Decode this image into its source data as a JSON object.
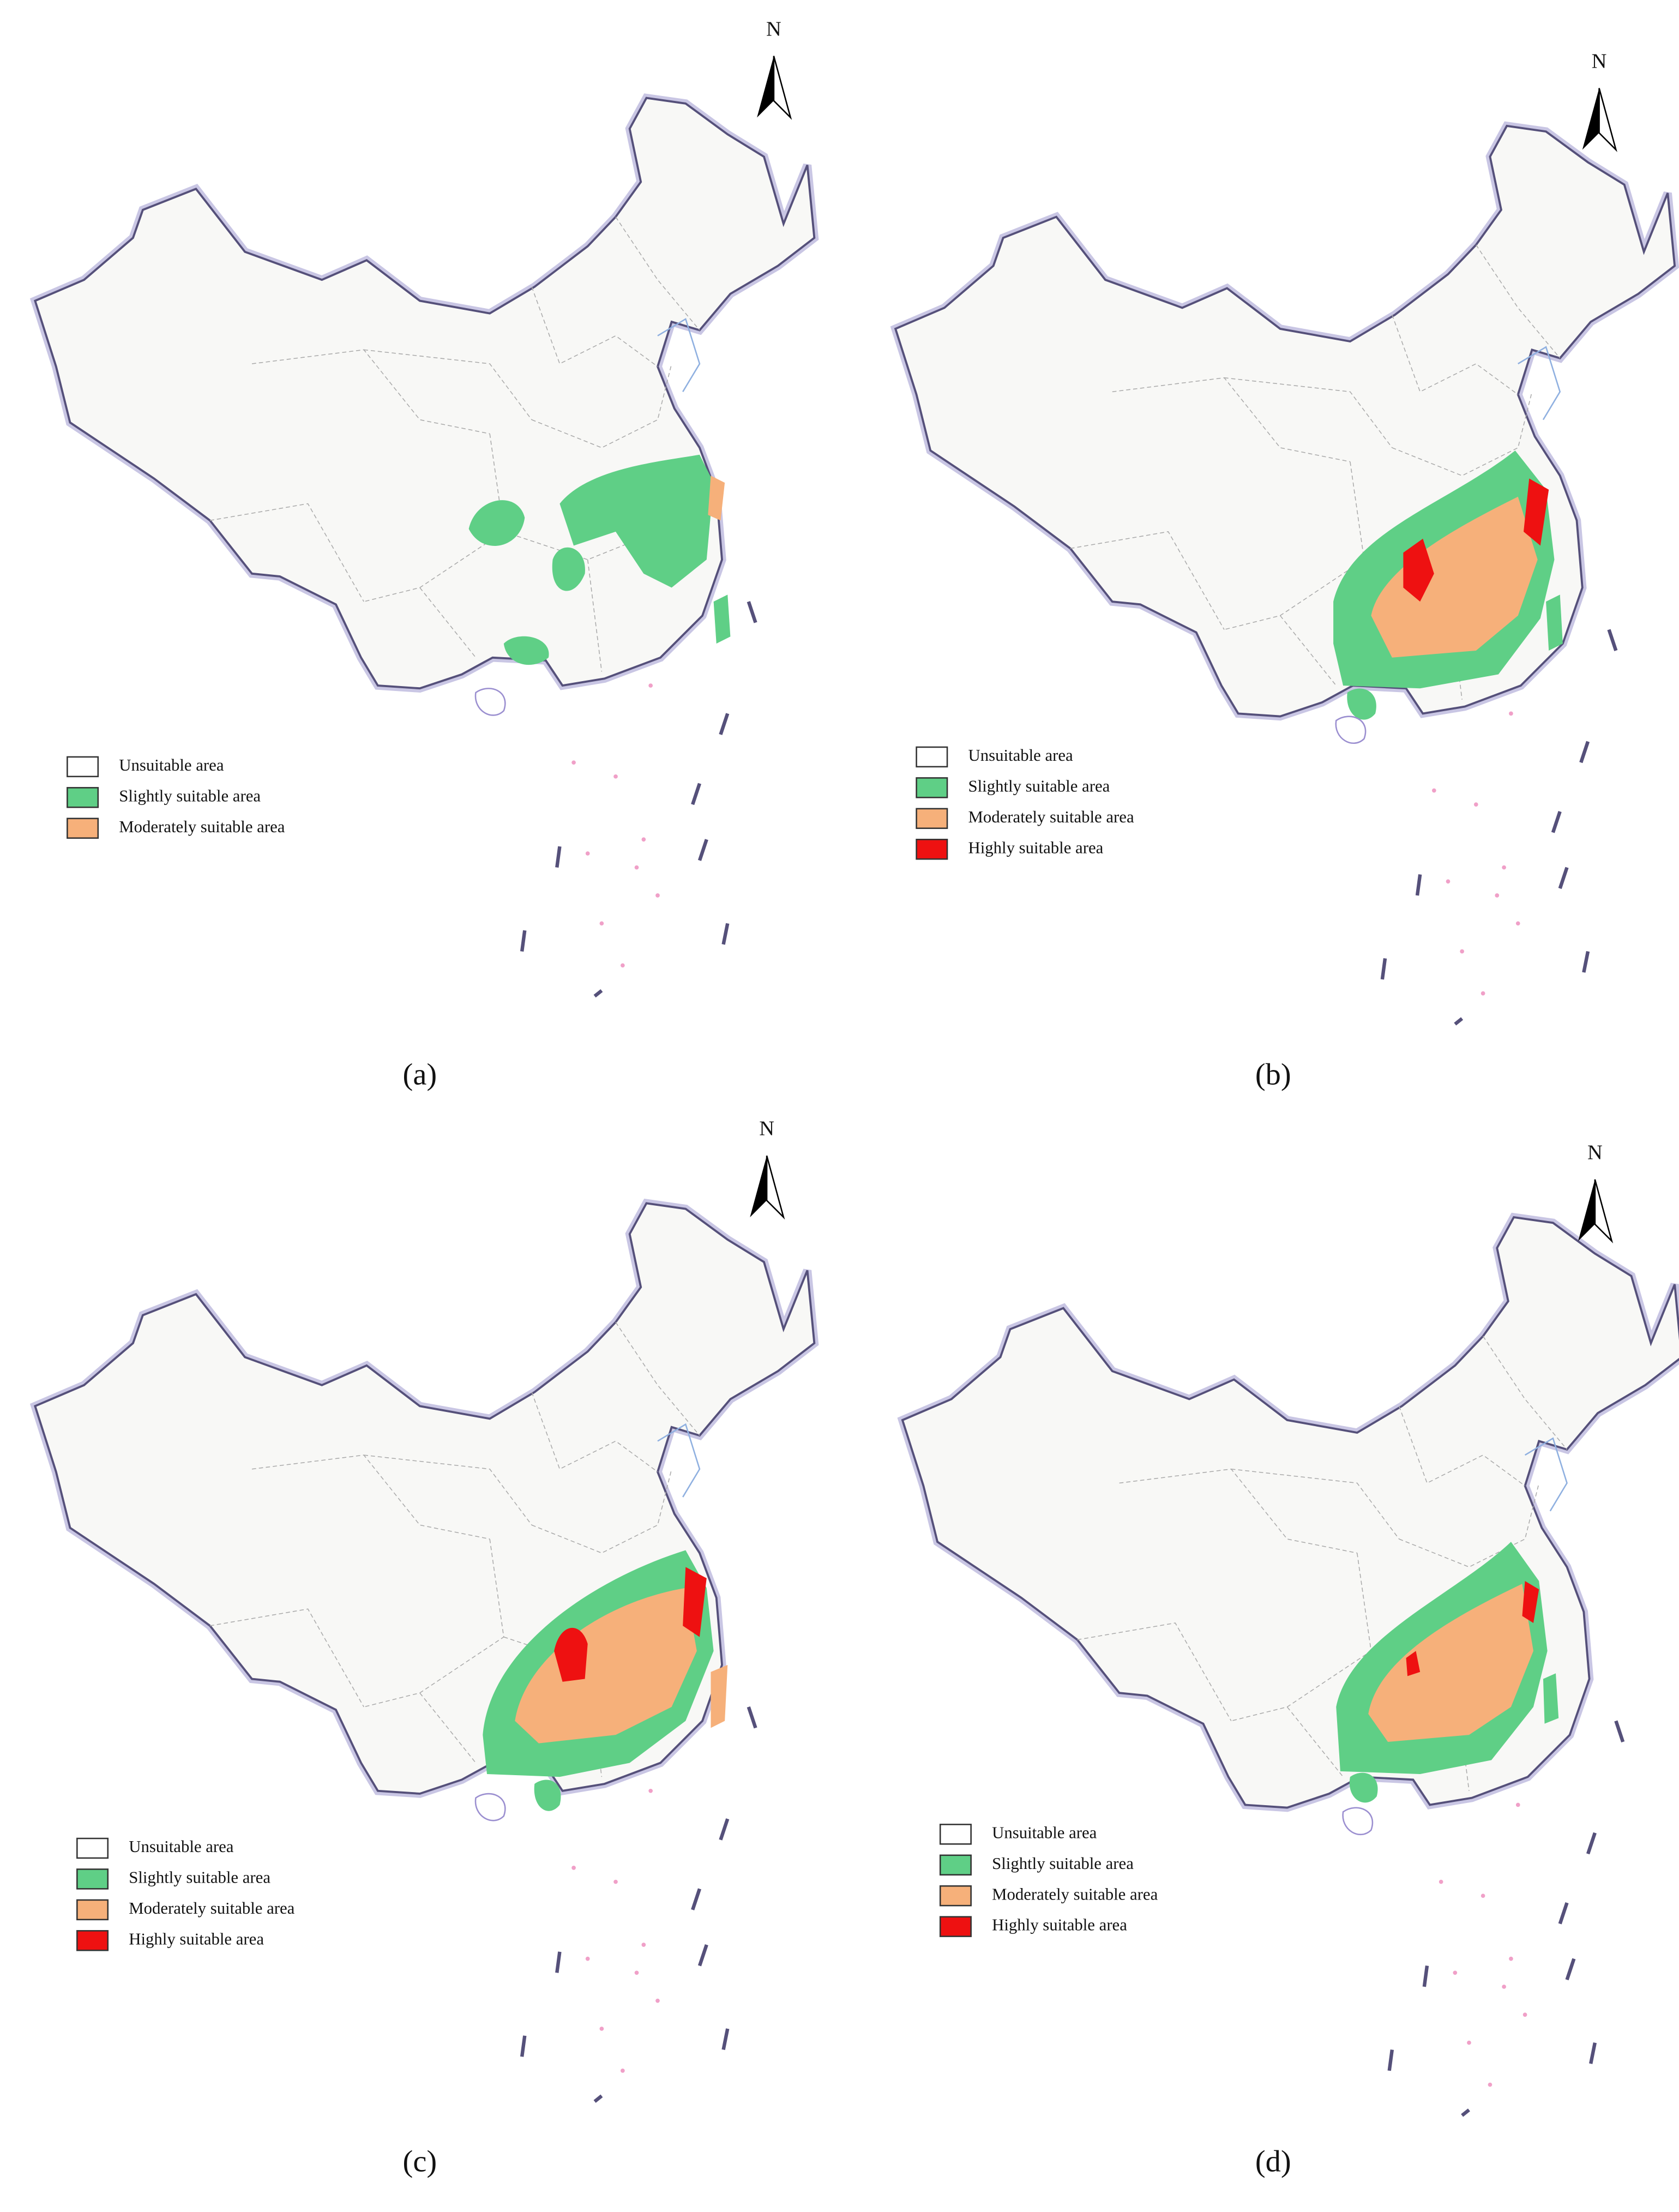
{
  "panels": [
    {
      "label": "(a)",
      "north": "N",
      "legend": [
        "Unsuitable area",
        "Slightly suitable area",
        "Moderately suitable area"
      ]
    },
    {
      "label": "(b)",
      "north": "N",
      "legend": [
        "Unsuitable area",
        "Slightly suitable area",
        "Moderately suitable area",
        "Highly suitable area"
      ]
    },
    {
      "label": "(c)",
      "north": "N",
      "legend": [
        "Unsuitable area",
        "Slightly suitable area",
        "Moderately suitable area",
        "Highly suitable area"
      ]
    },
    {
      "label": "(d)",
      "north": "N",
      "legend": [
        "Unsuitable area",
        "Slightly suitable area",
        "Moderately suitable area",
        "Highly suitable area"
      ]
    }
  ]
}
